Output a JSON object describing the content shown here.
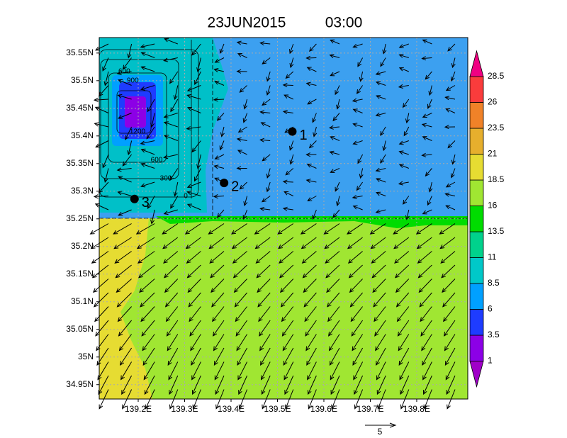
{
  "header": {
    "date": "23JUN2015",
    "time": "03:00"
  },
  "map": {
    "lon_range": [
      139.116,
      139.91
    ],
    "lat_range": [
      34.924,
      35.578
    ],
    "lon_ticks": [
      {
        "value": 139.2,
        "label": "139.2E"
      },
      {
        "value": 139.3,
        "label": "139.3E"
      },
      {
        "value": 139.4,
        "label": "139.4E"
      },
      {
        "value": 139.5,
        "label": "139.5E"
      },
      {
        "value": 139.6,
        "label": "139.6E"
      },
      {
        "value": 139.7,
        "label": "139.7E"
      },
      {
        "value": 139.8,
        "label": "139.8E"
      }
    ],
    "lat_ticks": [
      {
        "value": 35.55,
        "label": "35.55N"
      },
      {
        "value": 35.5,
        "label": "35.5N"
      },
      {
        "value": 35.45,
        "label": "35.45N"
      },
      {
        "value": 35.4,
        "label": "35.4N"
      },
      {
        "value": 35.35,
        "label": "35.35N"
      },
      {
        "value": 35.3,
        "label": "35.3N"
      },
      {
        "value": 35.25,
        "label": "35.25N"
      },
      {
        "value": 35.2,
        "label": "35.2N"
      },
      {
        "value": 35.15,
        "label": "35.15N"
      },
      {
        "value": 35.1,
        "label": "35.1N"
      },
      {
        "value": 35.05,
        "label": "35.05N"
      },
      {
        "value": 35,
        "label": "35N"
      },
      {
        "value": 34.95,
        "label": "34.95N"
      }
    ],
    "points": [
      {
        "label": "1",
        "lon": 139.532,
        "lat": 35.408
      },
      {
        "label": "2",
        "lon": 139.385,
        "lat": 35.315
      },
      {
        "label": "3",
        "lon": 139.192,
        "lat": 35.286
      }
    ],
    "contour_labels": [
      "600",
      "900",
      "1200",
      "600",
      "300",
      "0"
    ],
    "reference_vector": "5"
  },
  "colorbar": {
    "levels": [
      1,
      3.5,
      6,
      8.5,
      11,
      13.5,
      16,
      18.5,
      21,
      23.5,
      26,
      28.5
    ],
    "colors": [
      "#a000c8",
      "#8c00e6",
      "#1e3cff",
      "#00a0ff",
      "#00c8c8",
      "#00d28c",
      "#00dc00",
      "#a0e632",
      "#e6dc32",
      "#e6af2d",
      "#f08228",
      "#fa3c3c",
      "#f00082"
    ]
  }
}
